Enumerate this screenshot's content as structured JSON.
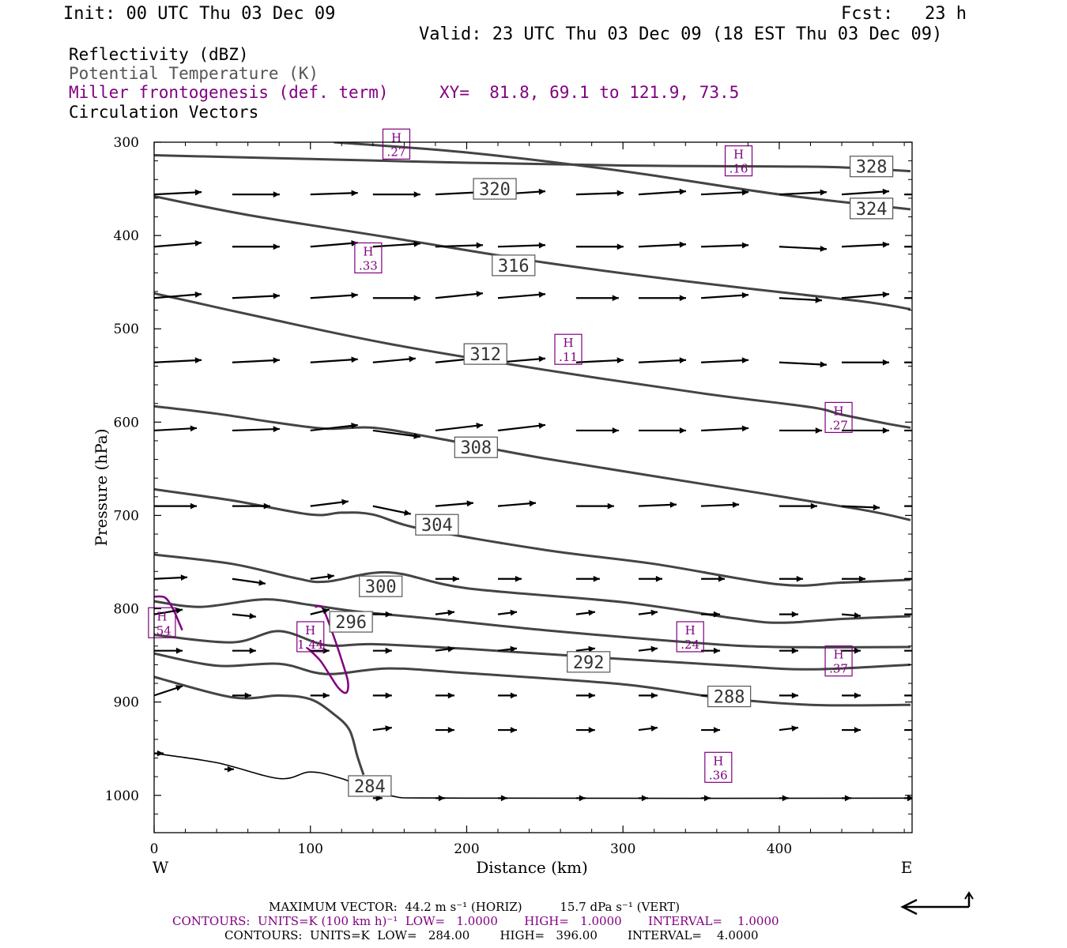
{
  "header": {
    "init": "Init: 00 UTC Thu 03 Dec 09",
    "fcst": "Fcst:   23 h",
    "valid": "Valid: 23 UTC Thu 03 Dec 09 (18 EST Thu 03 Dec 09)"
  },
  "legend": {
    "line1": "Reflectivity (dBZ)",
    "line2": "Potential Temperature (K)",
    "line3": "Miller frontogenesis (def. term)",
    "xy": "XY=  81.8, 69.1 to 121.9, 73.5",
    "line4": "Circulation Vectors"
  },
  "colors": {
    "theta": "#444444",
    "frontogenesis": "#800080",
    "vectors": "#000000",
    "text": "#000000"
  },
  "chart_data": {
    "type": "line",
    "xlabel": "Distance (km)",
    "ylabel": "Pressure (hPa)",
    "xlim": [
      0,
      485
    ],
    "ylim": [
      1040,
      300
    ],
    "x_ticks": [
      "0",
      "100",
      "200",
      "300",
      "400"
    ],
    "y_ticks": [
      "300",
      "400",
      "500",
      "600",
      "700",
      "800",
      "900",
      "1000"
    ],
    "west_label": "W",
    "east_label": "E",
    "theta_contours": [
      {
        "value": 328,
        "points": [
          [
            0,
            314
          ],
          [
            100,
            318
          ],
          [
            200,
            322
          ],
          [
            300,
            325
          ],
          [
            400,
            326
          ],
          [
            440,
            327
          ],
          [
            484,
            331
          ]
        ]
      },
      {
        "value": 324,
        "points": [
          [
            115,
            300
          ],
          [
            200,
            311
          ],
          [
            300,
            331
          ],
          [
            400,
            356
          ],
          [
            484,
            372
          ]
        ]
      },
      {
        "value": 320,
        "points": [
          [
            0,
            358
          ],
          [
            60,
            378
          ],
          [
            150,
            402
          ],
          [
            250,
            429
          ],
          [
            350,
            451
          ],
          [
            450,
            470
          ],
          [
            484,
            479
          ]
        ]
      },
      {
        "value": 316,
        "points": [
          [
            0,
            462
          ],
          [
            70,
            488
          ],
          [
            150,
            516
          ],
          [
            250,
            544
          ],
          [
            350,
            569
          ],
          [
            420,
            584
          ],
          [
            440,
            592
          ],
          [
            470,
            602
          ],
          [
            484,
            606
          ]
        ]
      },
      {
        "value": 312,
        "points": [
          [
            0,
            583
          ],
          [
            40,
            591
          ],
          [
            80,
            601
          ],
          [
            110,
            607
          ],
          [
            140,
            606
          ],
          [
            180,
            617
          ],
          [
            250,
            639
          ],
          [
            350,
            666
          ],
          [
            450,
            693
          ],
          [
            484,
            705
          ]
        ]
      },
      {
        "value": 308,
        "points": [
          [
            0,
            672
          ],
          [
            50,
            684
          ],
          [
            100,
            699
          ],
          [
            120,
            697
          ],
          [
            140,
            699
          ],
          [
            170,
            714
          ],
          [
            250,
            737
          ],
          [
            320,
            752
          ],
          [
            400,
            774
          ],
          [
            440,
            772
          ],
          [
            484,
            769
          ]
        ]
      },
      {
        "value": 304,
        "points": [
          [
            0,
            742
          ],
          [
            50,
            752
          ],
          [
            90,
            767
          ],
          [
            110,
            771
          ],
          [
            150,
            761
          ],
          [
            200,
            778
          ],
          [
            300,
            793
          ],
          [
            370,
            810
          ],
          [
            400,
            815
          ],
          [
            440,
            811
          ],
          [
            484,
            808
          ]
        ]
      },
      {
        "value": 300,
        "points": [
          [
            0,
            792
          ],
          [
            30,
            798
          ],
          [
            70,
            790
          ],
          [
            100,
            796
          ],
          [
            130,
            803
          ],
          [
            180,
            811
          ],
          [
            250,
            823
          ],
          [
            350,
            837
          ],
          [
            400,
            841
          ],
          [
            484,
            841
          ]
        ]
      },
      {
        "value": 296,
        "points": [
          [
            0,
            828
          ],
          [
            50,
            836
          ],
          [
            80,
            824
          ],
          [
            110,
            839
          ],
          [
            140,
            838
          ],
          [
            200,
            843
          ],
          [
            300,
            854
          ],
          [
            370,
            861
          ],
          [
            420,
            865
          ],
          [
            484,
            860
          ]
        ]
      },
      {
        "value": 292,
        "points": [
          [
            0,
            848
          ],
          [
            40,
            861
          ],
          [
            80,
            859
          ],
          [
            110,
            870
          ],
          [
            150,
            864
          ],
          [
            200,
            869
          ],
          [
            300,
            881
          ],
          [
            360,
            895
          ],
          [
            420,
            903
          ],
          [
            484,
            903
          ]
        ]
      },
      {
        "value": 288,
        "points": [
          [
            0,
            873
          ],
          [
            50,
            895
          ],
          [
            80,
            893
          ],
          [
            100,
            897
          ],
          [
            115,
            913
          ],
          [
            125,
            930
          ],
          [
            130,
            958
          ],
          [
            134,
            978
          ]
        ]
      },
      {
        "value": 284,
        "points": [
          [
            0,
            955
          ],
          [
            40,
            965
          ],
          [
            80,
            982
          ],
          [
            100,
            975
          ],
          [
            120,
            982
          ],
          [
            150,
            1000
          ],
          [
            200,
            1003
          ],
          [
            484,
            1003
          ]
        ]
      }
    ],
    "theta_labels": [
      {
        "text": "328",
        "x": 459,
        "p": 326
      },
      {
        "text": "324",
        "x": 459,
        "p": 371
      },
      {
        "text": "320",
        "x": 218,
        "p": 350
      },
      {
        "text": "316",
        "x": 230,
        "p": 432
      },
      {
        "text": "312",
        "x": 212,
        "p": 527
      },
      {
        "text": "308",
        "x": 206,
        "p": 627
      },
      {
        "text": "304",
        "x": 181,
        "p": 710
      },
      {
        "text": "300",
        "x": 145,
        "p": 776
      },
      {
        "text": "296",
        "x": 126,
        "p": 814
      },
      {
        "text": "292",
        "x": 278,
        "p": 857
      },
      {
        "text": "288",
        "x": 368,
        "p": 894
      },
      {
        "text": "284",
        "x": 138,
        "p": 990
      }
    ],
    "frontogenesis_maxima": [
      {
        "label": "H",
        "value": ".27",
        "x": 155,
        "p": 302
      },
      {
        "label": "H",
        "value": ".16",
        "x": 374,
        "p": 320
      },
      {
        "label": "H",
        "value": ".33",
        "x": 137,
        "p": 424
      },
      {
        "label": "H",
        "value": ".11",
        "x": 265,
        "p": 522
      },
      {
        "label": "H",
        "value": ".27",
        "x": 438,
        "p": 595
      },
      {
        "label": "H",
        "value": ".54",
        "x": 5,
        "p": 815
      },
      {
        "label": "H",
        "value": "1.44",
        "x": 100,
        "p": 830
      },
      {
        "label": "H",
        "value": ".24",
        "x": 343,
        "p": 830
      },
      {
        "label": "H",
        "value": ".37",
        "x": 438,
        "p": 856
      },
      {
        "label": "H",
        "value": ".36",
        "x": 361,
        "p": 970
      }
    ],
    "frontogenesis_contour": [
      [
        0,
        787
      ],
      [
        7,
        788
      ],
      [
        12,
        800
      ],
      [
        16,
        815
      ],
      [
        18,
        823
      ]
    ],
    "frontogenesis_contour2": [
      [
        103,
        798
      ],
      [
        108,
        800
      ],
      [
        115,
        830
      ],
      [
        120,
        855
      ],
      [
        124,
        878
      ],
      [
        123,
        890
      ],
      [
        118,
        885
      ],
      [
        112,
        870
      ],
      [
        106,
        855
      ],
      [
        98,
        842
      ]
    ],
    "vector_levels": [
      {
        "p": 356,
        "x": [
          0,
          50,
          100,
          140,
          180,
          220,
          270,
          310,
          350,
          400,
          440,
          480
        ],
        "u": [
          1,
          1,
          1,
          1,
          1,
          1,
          1,
          1,
          1,
          1,
          1,
          0.5
        ],
        "w": [
          -3,
          0,
          -2,
          0,
          -3,
          -4,
          -2,
          -4,
          -3,
          -3,
          -4,
          0
        ]
      },
      {
        "p": 412,
        "x": [
          0,
          50,
          100,
          140,
          180,
          220,
          270,
          310,
          350,
          400,
          440,
          480
        ],
        "u": [
          1,
          1,
          1,
          1,
          1,
          1,
          1,
          1,
          1,
          1,
          1,
          0.5
        ],
        "w": [
          -5,
          0,
          -5,
          -4,
          -2,
          -2,
          0,
          -3,
          -2,
          3,
          -3,
          0
        ]
      },
      {
        "p": 467,
        "x": [
          0,
          50,
          100,
          140,
          180,
          220,
          270,
          310,
          350,
          400,
          440,
          480
        ],
        "u": [
          1,
          1,
          1,
          1,
          1,
          1,
          0.9,
          1,
          1,
          0.9,
          1,
          0.5
        ],
        "w": [
          -5,
          -3,
          -4,
          0,
          -6,
          -5,
          0,
          0,
          -4,
          3,
          -5,
          0
        ]
      },
      {
        "p": 536,
        "x": [
          0,
          50,
          100,
          140,
          180,
          220,
          270,
          310,
          350,
          400,
          440,
          480
        ],
        "u": [
          1,
          1,
          1,
          0.9,
          1,
          1,
          1,
          1,
          1,
          1,
          1,
          0.5
        ],
        "w": [
          -3,
          -3,
          -4,
          -5,
          -6,
          -5,
          -3,
          -3,
          -3,
          3,
          0,
          0
        ]
      },
      {
        "p": 609,
        "x": [
          0,
          50,
          100,
          140,
          180,
          220,
          270,
          310,
          350,
          400,
          440,
          480
        ],
        "u": [
          0.9,
          1,
          1,
          1,
          1,
          1,
          0.9,
          1,
          1,
          0.9,
          1,
          0.5
        ],
        "w": [
          -3,
          -2,
          -7,
          8,
          -7,
          -7,
          0,
          0,
          -3,
          0,
          0,
          0
        ]
      },
      {
        "p": 690,
        "x": [
          0,
          50,
          100,
          140,
          180,
          220,
          270,
          310,
          350,
          400,
          440,
          480
        ],
        "u": [
          0.9,
          0.8,
          0.8,
          0.8,
          0.8,
          0.8,
          0.8,
          0.8,
          0.8,
          0.8,
          0.8,
          0.5
        ],
        "w": [
          0,
          0,
          -6,
          10,
          -4,
          -4,
          0,
          -2,
          -2,
          0,
          2,
          0
        ]
      },
      {
        "p": 768,
        "x": [
          0,
          50,
          100,
          140,
          180,
          220,
          270,
          310,
          350,
          400,
          440,
          480
        ],
        "u": [
          0.7,
          0.7,
          0.5,
          0.5,
          0.5,
          0.5,
          0.5,
          0.5,
          0.5,
          0.5,
          0.5,
          0.5
        ],
        "w": [
          -2,
          6,
          -4,
          0,
          0,
          0,
          0,
          0,
          0,
          0,
          0,
          0
        ]
      },
      {
        "p": 806,
        "x": [
          0,
          50,
          100,
          140,
          180,
          220,
          270,
          310,
          350,
          400,
          440,
          480
        ],
        "u": [
          0.6,
          0.5,
          0.4,
          0.4,
          0.4,
          0.4,
          0.4,
          0.4,
          0.4,
          0.4,
          0.4,
          0.4
        ],
        "w": [
          -6,
          3,
          -6,
          0,
          -3,
          -3,
          -3,
          -3,
          0,
          0,
          2,
          0
        ]
      },
      {
        "p": 845,
        "x": [
          0,
          50,
          100,
          140,
          180,
          220,
          270,
          310,
          350,
          400,
          440,
          480
        ],
        "u": [
          0.6,
          0.5,
          0.4,
          0.4,
          0.4,
          0.4,
          0.4,
          0.4,
          0.4,
          0.4,
          0.4,
          0.4
        ],
        "w": [
          0,
          0,
          0,
          0,
          -3,
          -3,
          -3,
          -3,
          0,
          0,
          0,
          0
        ]
      },
      {
        "p": 893,
        "x": [
          0,
          50,
          100,
          140,
          180,
          220,
          270,
          310,
          350,
          400,
          440,
          480
        ],
        "u": [
          0.6,
          0.4,
          0.4,
          0.4,
          0.4,
          0.4,
          0.4,
          0.4,
          0.4,
          0.4,
          0.4,
          0.4
        ],
        "w": [
          -12,
          0,
          0,
          0,
          0,
          0,
          0,
          0,
          0,
          0,
          0,
          0
        ]
      },
      {
        "p": 930,
        "x": [
          140,
          180,
          220,
          270,
          310,
          350,
          400,
          440,
          480
        ],
        "u": [
          0.4,
          0.4,
          0.4,
          0.4,
          0.4,
          0.4,
          0.4,
          0.4,
          0.3
        ],
        "w": [
          -3,
          0,
          0,
          0,
          -3,
          0,
          -3,
          0,
          0
        ]
      },
      {
        "p": 1003,
        "x": [
          140,
          180,
          220,
          270,
          310,
          350,
          400,
          440,
          480
        ],
        "u": [
          0.2,
          0.2,
          0.2,
          0.2,
          0.2,
          0.2,
          0.2,
          0.2,
          0.2
        ],
        "w": [
          0,
          0,
          0,
          0,
          0,
          0,
          0,
          0,
          0
        ]
      }
    ],
    "surface_vectors": [
      {
        "x": 0,
        "p": 955,
        "u": 0.2,
        "w": 0
      },
      {
        "x": 45,
        "p": 972,
        "u": 0.2,
        "w": 0
      }
    ]
  },
  "footer": {
    "max_vector": "MAXIMUM VECTOR:  44.2 m s⁻¹ (HORIZ)          15.7 dPa s⁻¹ (VERT)",
    "contours_fronto": "CONTOURS:  UNITS=K (100 km h)⁻¹  LOW=   1.0000       HIGH=   1.0000       INTERVAL=    1.0000",
    "contours_theta": "CONTOURS:  UNITS=K  LOW=   284.00        HIGH=   396.00        INTERVAL=    4.0000"
  }
}
